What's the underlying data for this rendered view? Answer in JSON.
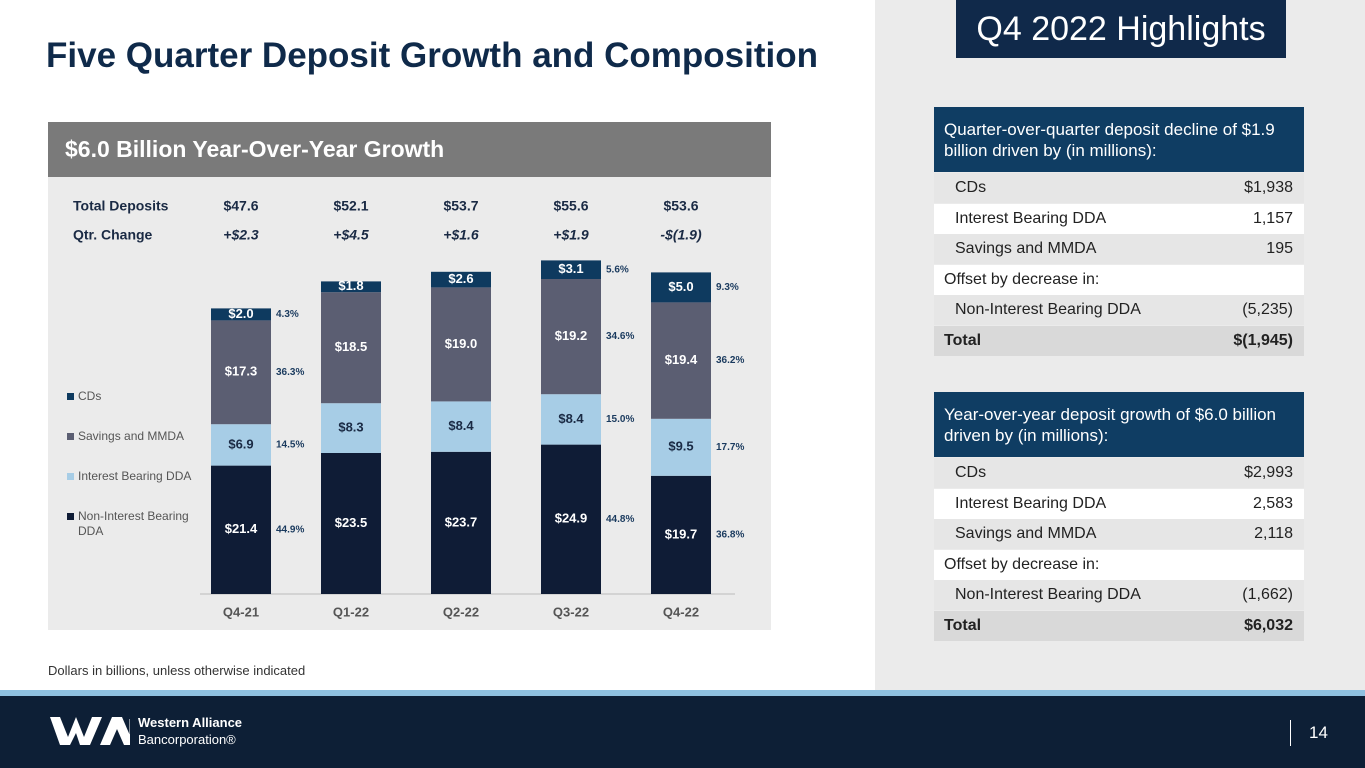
{
  "title": "Five Quarter Deposit Growth and Composition",
  "chart_data": {
    "type": "bar",
    "stacked": true,
    "title": "$6.0 Billion Year-Over-Year Growth",
    "categories": [
      "Q4-21",
      "Q1-22",
      "Q2-22",
      "Q3-22",
      "Q4-22"
    ],
    "series": [
      {
        "name": "Non-Interest Bearing DDA",
        "color": "#0f1c36",
        "values": [
          21.4,
          23.5,
          23.7,
          24.9,
          19.7
        ],
        "value_labels": [
          "$21.4",
          "$23.5",
          "$23.7",
          "$24.9",
          "$19.7"
        ],
        "share_labels": [
          "44.9%",
          null,
          null,
          "44.8%",
          "36.8%"
        ]
      },
      {
        "name": "Interest Bearing DDA",
        "color": "#a7cde6",
        "values": [
          6.9,
          8.3,
          8.4,
          8.4,
          9.5
        ],
        "value_labels": [
          "$6.9",
          "$8.3",
          "$8.4",
          "$8.4",
          "$9.5"
        ],
        "share_labels": [
          "14.5%",
          null,
          null,
          "15.0%",
          "17.7%"
        ]
      },
      {
        "name": "Savings and MMDA",
        "color": "#5b5e72",
        "values": [
          17.3,
          18.5,
          19.0,
          19.2,
          19.4
        ],
        "value_labels": [
          "$17.3",
          "$18.5",
          "$19.0",
          "$19.2",
          "$19.4"
        ],
        "share_labels": [
          "36.3%",
          null,
          null,
          "34.6%",
          "36.2%"
        ]
      },
      {
        "name": "CDs",
        "color": "#0e3a5f",
        "values": [
          2.0,
          1.8,
          2.6,
          3.1,
          5.0
        ],
        "value_labels": [
          "$2.0",
          "$1.8",
          "$2.6",
          "$3.1",
          "$5.0"
        ],
        "share_labels": [
          "4.3%",
          null,
          null,
          "5.6%",
          "9.3%"
        ]
      }
    ],
    "ylim": [
      0,
      60
    ],
    "totals_row": {
      "label": "Total Deposits",
      "values": [
        "$47.6",
        "$52.1",
        "$53.7",
        "$55.6",
        "$53.6"
      ]
    },
    "change_row": {
      "label": "Qtr. Change",
      "values": [
        "+$2.3",
        "+$4.5",
        "+$1.6",
        "+$1.9",
        "-$(1.9)"
      ]
    },
    "note": "Dollars in billions, unless otherwise indicated"
  },
  "highlights": {
    "title": "Q4 2022 Highlights",
    "tables": [
      {
        "heading": "Quarter-over-quarter deposit decline of $1.9 billion driven by (in millions):",
        "rows": [
          [
            "CDs",
            "$1,938"
          ],
          [
            "Interest Bearing DDA",
            "1,157"
          ],
          [
            "Savings and MMDA",
            "195"
          ],
          [
            "Offset by decrease in:"
          ],
          [
            "Non-Interest Bearing DDA",
            "(5,235)"
          ]
        ],
        "total": [
          "Total",
          "$(1,945)"
        ]
      },
      {
        "heading": "Year-over-year deposit growth of $6.0 billion driven by (in millions):",
        "rows": [
          [
            "CDs",
            "$2,993"
          ],
          [
            "Interest Bearing DDA",
            "2,583"
          ],
          [
            "Savings and MMDA",
            "2,118"
          ],
          [
            "Offset by decrease in:"
          ],
          [
            "Non-Interest Bearing DDA",
            "(1,662)"
          ]
        ],
        "total": [
          "Total",
          "$6,032"
        ]
      }
    ]
  },
  "footer": {
    "company": "Western Alliance",
    "company_sub": "Bancorporation®",
    "page": "14"
  }
}
